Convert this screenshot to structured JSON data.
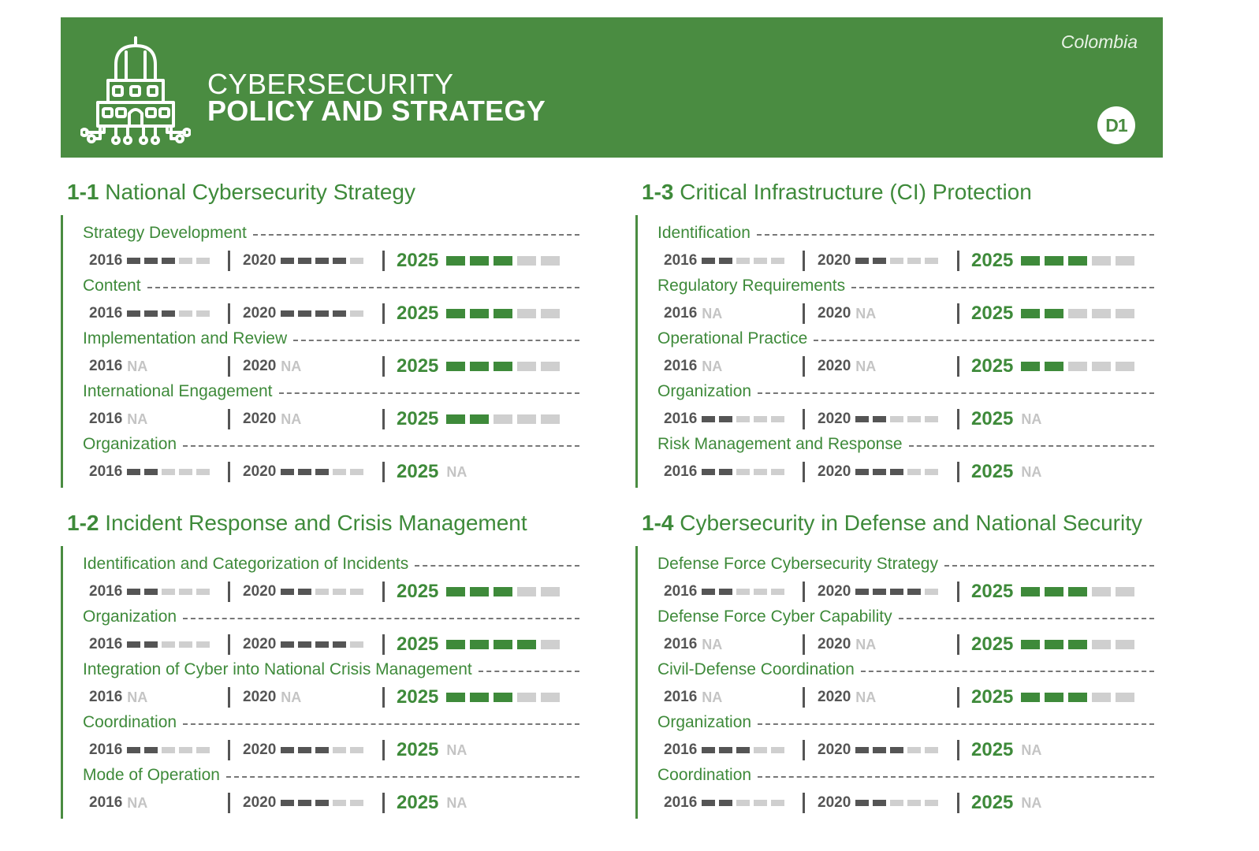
{
  "header": {
    "title_line1": "CYBERSECURITY",
    "title_line2": "POLICY AND STRATEGY",
    "country": "Colombia",
    "badge": "D1",
    "logo_icon": "government-building-circuit-icon",
    "colors": {
      "brand_green": "#4a8c41",
      "inactive_bar": "#cfcfcf",
      "active_bar": "#555555"
    }
  },
  "sections": [
    {
      "num": "1-1",
      "title": "National Cybersecurity Strategy",
      "indicators": [
        {
          "label": "Strategy Development",
          "y2016": {
            "year": "2016",
            "level": 3,
            "na": null
          },
          "y2020": {
            "year": "2020",
            "level": 4,
            "na": null
          },
          "y2025": {
            "year": "2025",
            "level": 3,
            "na": null
          }
        },
        {
          "label": "Content",
          "y2016": {
            "year": "2016",
            "level": 3,
            "na": null
          },
          "y2020": {
            "year": "2020",
            "level": 4,
            "na": null
          },
          "y2025": {
            "year": "2025",
            "level": 3,
            "na": null
          }
        },
        {
          "label": "Implementation and Review",
          "y2016": {
            "year": "2016",
            "level": 0,
            "na": "NA"
          },
          "y2020": {
            "year": "2020",
            "level": 0,
            "na": "NA"
          },
          "y2025": {
            "year": "2025",
            "level": 3,
            "na": null
          }
        },
        {
          "label": "International Engagement",
          "y2016": {
            "year": "2016",
            "level": 0,
            "na": "NA"
          },
          "y2020": {
            "year": "2020",
            "level": 0,
            "na": "NA"
          },
          "y2025": {
            "year": "2025",
            "level": 2,
            "na": null
          }
        },
        {
          "label": "Organization",
          "y2016": {
            "year": "2016",
            "level": 2,
            "na": null
          },
          "y2020": {
            "year": "2020",
            "level": 3,
            "na": null
          },
          "y2025": {
            "year": "2025",
            "level": 0,
            "na": "NA"
          }
        }
      ]
    },
    {
      "num": "1-3",
      "title": "Critical Infrastructure (CI) Protection",
      "indicators": [
        {
          "label": "Identification",
          "y2016": {
            "year": "2016",
            "level": 2,
            "na": null
          },
          "y2020": {
            "year": "2020",
            "level": 2,
            "na": null
          },
          "y2025": {
            "year": "2025",
            "level": 3,
            "na": null
          }
        },
        {
          "label": "Regulatory Requirements",
          "y2016": {
            "year": "2016",
            "level": 0,
            "na": "NA"
          },
          "y2020": {
            "year": "2020",
            "level": 0,
            "na": "NA"
          },
          "y2025": {
            "year": "2025",
            "level": 2,
            "na": null
          }
        },
        {
          "label": "Operational Practice",
          "y2016": {
            "year": "2016",
            "level": 0,
            "na": "NA"
          },
          "y2020": {
            "year": "2020",
            "level": 0,
            "na": "NA"
          },
          "y2025": {
            "year": "2025",
            "level": 2,
            "na": null
          }
        },
        {
          "label": "Organization",
          "y2016": {
            "year": "2016",
            "level": 2,
            "na": null
          },
          "y2020": {
            "year": "2020",
            "level": 2,
            "na": null
          },
          "y2025": {
            "year": "2025",
            "level": 0,
            "na": "NA"
          }
        },
        {
          "label": "Risk Management and Response",
          "y2016": {
            "year": "2016",
            "level": 2,
            "na": null
          },
          "y2020": {
            "year": "2020",
            "level": 3,
            "na": null
          },
          "y2025": {
            "year": "2025",
            "level": 0,
            "na": "NA"
          }
        }
      ]
    },
    {
      "num": "1-2",
      "title": "Incident Response and Crisis Management",
      "indicators": [
        {
          "label": "Identification and Categorization of Incidents",
          "y2016": {
            "year": "2016",
            "level": 2,
            "na": null
          },
          "y2020": {
            "year": "2020",
            "level": 2,
            "na": null
          },
          "y2025": {
            "year": "2025",
            "level": 3,
            "na": null
          }
        },
        {
          "label": "Organization",
          "y2016": {
            "year": "2016",
            "level": 2,
            "na": null
          },
          "y2020": {
            "year": "2020",
            "level": 4,
            "na": null
          },
          "y2025": {
            "year": "2025",
            "level": 4,
            "na": null
          }
        },
        {
          "label": "Integration of Cyber into National Crisis Management",
          "y2016": {
            "year": "2016",
            "level": 0,
            "na": "NA"
          },
          "y2020": {
            "year": "2020",
            "level": 0,
            "na": "NA"
          },
          "y2025": {
            "year": "2025",
            "level": 3,
            "na": null
          }
        },
        {
          "label": "Coordination",
          "y2016": {
            "year": "2016",
            "level": 2,
            "na": null
          },
          "y2020": {
            "year": "2020",
            "level": 3,
            "na": null
          },
          "y2025": {
            "year": "2025",
            "level": 0,
            "na": "NA"
          }
        },
        {
          "label": "Mode of Operation",
          "y2016": {
            "year": "2016",
            "level": 0,
            "na": "NA"
          },
          "y2020": {
            "year": "2020",
            "level": 3,
            "na": null
          },
          "y2025": {
            "year": "2025",
            "level": 0,
            "na": "NA"
          }
        }
      ]
    },
    {
      "num": "1-4",
      "title": "Cybersecurity in Defense and National Security",
      "indicators": [
        {
          "label": "Defense Force Cybersecurity Strategy",
          "y2016": {
            "year": "2016",
            "level": 2,
            "na": null
          },
          "y2020": {
            "year": "2020",
            "level": 4,
            "na": null
          },
          "y2025": {
            "year": "2025",
            "level": 3,
            "na": null
          }
        },
        {
          "label": "Defense Force Cyber Capability",
          "y2016": {
            "year": "2016",
            "level": 0,
            "na": "NA"
          },
          "y2020": {
            "year": "2020",
            "level": 0,
            "na": "NA"
          },
          "y2025": {
            "year": "2025",
            "level": 3,
            "na": null
          }
        },
        {
          "label": "Civil-Defense Coordination",
          "y2016": {
            "year": "2016",
            "level": 0,
            "na": "NA"
          },
          "y2020": {
            "year": "2020",
            "level": 0,
            "na": "NA"
          },
          "y2025": {
            "year": "2025",
            "level": 3,
            "na": null
          }
        },
        {
          "label": "Organization",
          "y2016": {
            "year": "2016",
            "level": 3,
            "na": null
          },
          "y2020": {
            "year": "2020",
            "level": 3,
            "na": null
          },
          "y2025": {
            "year": "2025",
            "level": 0,
            "na": "NA"
          }
        },
        {
          "label": "Coordination",
          "y2016": {
            "year": "2016",
            "level": 2,
            "na": null
          },
          "y2020": {
            "year": "2020",
            "level": 2,
            "na": null
          },
          "y2025": {
            "year": "2025",
            "level": 0,
            "na": "NA"
          }
        }
      ]
    }
  ]
}
